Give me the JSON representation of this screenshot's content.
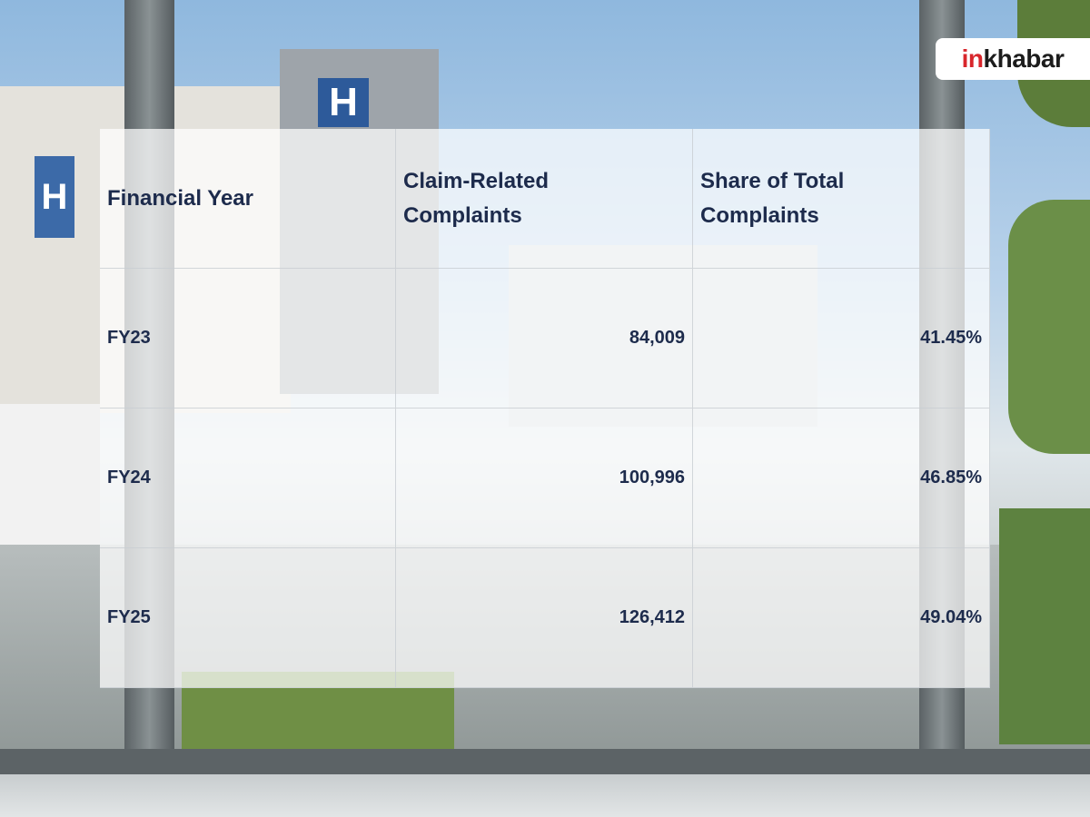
{
  "logo": {
    "parts": [
      "in",
      "khabar"
    ]
  },
  "table": {
    "header": [
      "Financial Year",
      "Claim-Related Complaints",
      "Share of Total Complaints"
    ],
    "rows": [
      [
        "FY23",
        "84,009",
        "41.45%"
      ],
      [
        "FY24",
        "100,996",
        "46.85%"
      ],
      [
        "FY25",
        "126,412",
        "49.04%"
      ]
    ]
  }
}
